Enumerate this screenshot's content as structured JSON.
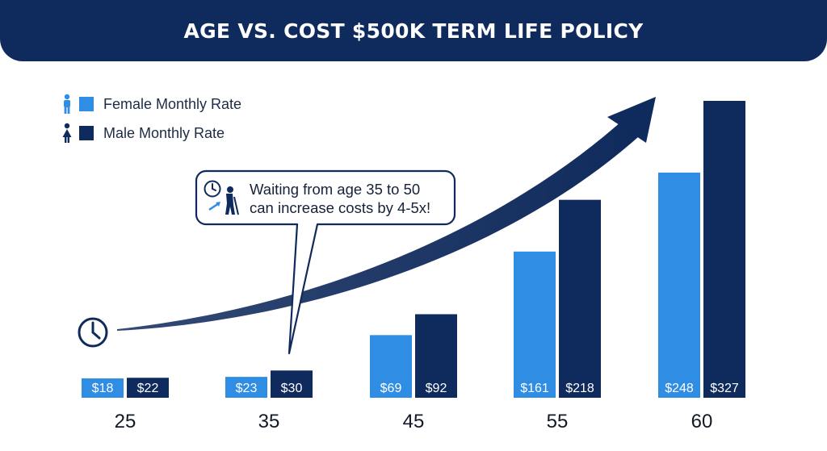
{
  "title": "AGE VS. COST $500K TERM LIFE POLICY",
  "legend": {
    "female": "Female Monthly Rate",
    "male": "Male Monthly Rate"
  },
  "callout": {
    "line1": "Waiting from age 35 to 50",
    "line2": "can increase costs by 4-5x!"
  },
  "colors": {
    "header": "#0f2a5c",
    "female": "#2f8de4",
    "male": "#0f2a5c",
    "arrow": "#0f2a5c"
  },
  "icons": [
    "male-person-icon",
    "female-person-icon",
    "clock-icon",
    "elderly-person-icon",
    "trend-arrow-icon"
  ],
  "chart_data": {
    "type": "bar",
    "title": "AGE VS. COST $500K TERM LIFE POLICY",
    "categories": [
      "25",
      "35",
      "45",
      "55",
      "60"
    ],
    "series": [
      {
        "name": "Female Monthly Rate",
        "values": [
          18,
          23,
          69,
          161,
          248
        ],
        "labels": [
          "$18",
          "$23",
          "$69",
          "$161",
          "$248"
        ]
      },
      {
        "name": "Male Monthly Rate",
        "values": [
          22,
          30,
          92,
          218,
          327
        ],
        "labels": [
          "$22",
          "$30",
          "$92",
          "$218",
          "$327"
        ]
      }
    ],
    "xlabel": "",
    "ylabel": "",
    "legend_position": "top-left",
    "grid": false
  }
}
